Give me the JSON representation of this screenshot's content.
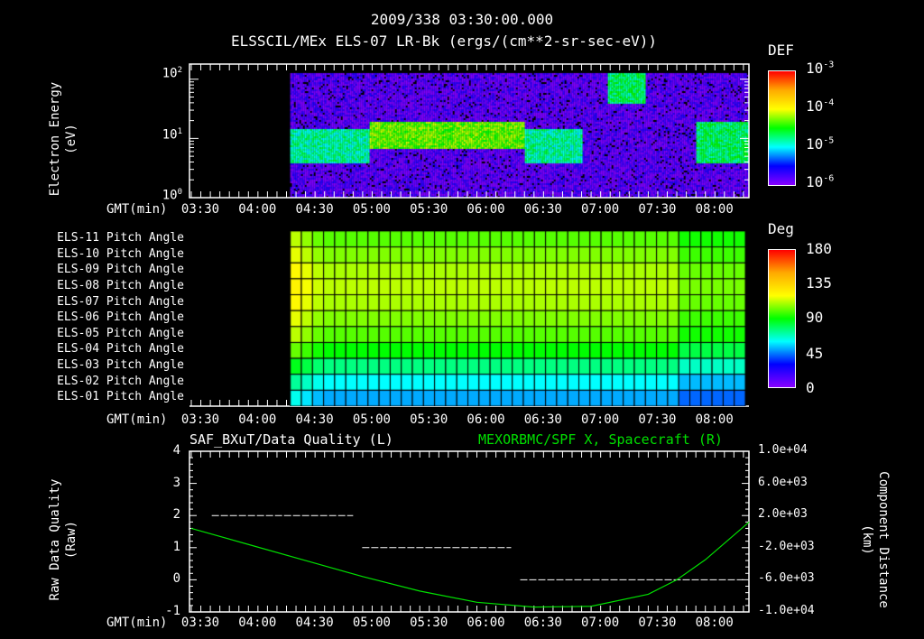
{
  "header": {
    "timestamp": "2009/338 03:30:00.000",
    "title": "ELSSCIL/MEx ELS-07 LR-Bk  (ergs/(cm**2-sr-sec-eV))"
  },
  "time_axis": {
    "label": "GMT(min)",
    "ticks": [
      "03:30",
      "04:00",
      "04:30",
      "05:00",
      "05:30",
      "06:00",
      "06:30",
      "07:00",
      "07:30",
      "08:00"
    ]
  },
  "chart_data": [
    {
      "type": "heatmap",
      "title": "ELSSCIL/MEx ELS-07 LR-Bk",
      "ylabel": "Electron Energy",
      "yunit": "(eV)",
      "yscale": "log",
      "ylim": [
        1,
        180
      ],
      "yticks": [
        "10^0",
        "10^1",
        "10^2"
      ],
      "data_start": "04:22",
      "data_end": "08:23",
      "colorbar": {
        "label": "DEF",
        "ticks": [
          "10^-3",
          "10^-4",
          "10^-5",
          "10^-6"
        ],
        "range": [
          1e-06,
          0.001
        ]
      },
      "features": [
        {
          "from": "04:22",
          "to": "05:03",
          "band_eV": [
            4,
            15
          ],
          "level": 1.5e-05
        },
        {
          "from": "05:03",
          "to": "06:25",
          "band_eV": [
            7,
            20
          ],
          "level": 5e-05
        },
        {
          "from": "06:25",
          "to": "06:55",
          "band_eV": [
            4,
            15
          ],
          "level": 1.5e-05
        },
        {
          "from": "07:08",
          "to": "07:28",
          "band_eV": [
            40,
            150
          ],
          "level": 2e-05
        },
        {
          "from": "07:55",
          "to": "08:23",
          "band_eV": [
            4,
            20
          ],
          "level": 2e-05
        }
      ]
    },
    {
      "type": "heatmap",
      "title": "Pitch Angle",
      "rows": [
        "ELS-11 Pitch Angle",
        "ELS-10 Pitch Angle",
        "ELS-09 Pitch Angle",
        "ELS-08 Pitch Angle",
        "ELS-07 Pitch Angle",
        "ELS-06 Pitch Angle",
        "ELS-05 Pitch Angle",
        "ELS-04 Pitch Angle",
        "ELS-03 Pitch Angle",
        "ELS-02 Pitch Angle",
        "ELS-01 Pitch Angle"
      ],
      "row_values_deg": [
        100,
        105,
        110,
        112,
        110,
        105,
        100,
        90,
        75,
        60,
        50
      ],
      "data_start": "04:22",
      "data_end": "08:20",
      "colorbar": {
        "label": "Deg",
        "ticks": [
          "180",
          "135",
          "90",
          "45",
          "0"
        ],
        "range": [
          0,
          180
        ]
      }
    },
    {
      "type": "line",
      "left_title": "SAF_BXuT/Data Quality (L)",
      "right_title": "MEXORBMC/SPF X, Spacecraft (R)",
      "ylabel": "Raw Data Quality",
      "yunit": "(Raw)",
      "ylim": [
        -1,
        4
      ],
      "yticks": [
        "4",
        "3",
        "2",
        "1",
        "0",
        "-1"
      ],
      "y2label": "Component Distance",
      "y2unit": "(km)",
      "y2lim": [
        -10000,
        10000
      ],
      "y2ticks": [
        "1.0e+04",
        "6.0e+03",
        "2.0e+03",
        "-2.0e+03",
        "-6.0e+03",
        "-1.0e+04"
      ],
      "series": [
        {
          "name": "Data Quality",
          "axis": "left",
          "color": "#ffffff",
          "segments": [
            {
              "from": "03:36",
              "to": "04:55",
              "value": 2
            },
            {
              "from": "04:55",
              "to": "06:18",
              "value": 1
            },
            {
              "from": "06:18",
              "to": "08:20",
              "value": 0
            }
          ]
        },
        {
          "name": "SPF X",
          "axis": "right",
          "color": "#00e000",
          "x": [
            "03:30",
            "04:00",
            "04:30",
            "05:00",
            "05:30",
            "06:00",
            "06:30",
            "07:00",
            "07:30",
            "07:45",
            "08:00",
            "08:23"
          ],
          "y": [
            400,
            -1600,
            -3600,
            -5600,
            -7400,
            -8800,
            -9400,
            -9300,
            -7800,
            -6000,
            -3500,
            1200
          ]
        }
      ]
    }
  ]
}
